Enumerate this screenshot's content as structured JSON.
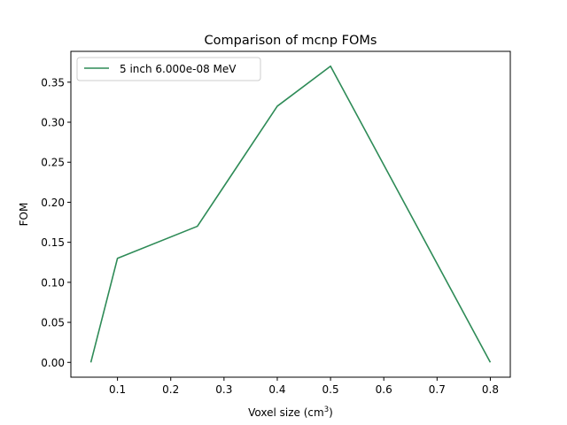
{
  "chart_data": {
    "type": "line",
    "title": "Comparison of mcnp FOMs",
    "xlabel": "Voxel size (cm",
    "xlabel_sup": "3",
    "xlabel_end": ")",
    "ylabel": "FOM",
    "xlim": [
      0.0125,
      0.8375
    ],
    "ylim": [
      -0.0185,
      0.3885
    ],
    "xticks": [
      0.1,
      0.2,
      0.3,
      0.4,
      0.5,
      0.6,
      0.7,
      0.8
    ],
    "xtick_labels": [
      "0.1",
      "0.2",
      "0.3",
      "0.4",
      "0.5",
      "0.6",
      "0.7",
      "0.8"
    ],
    "yticks": [
      0.0,
      0.05,
      0.1,
      0.15,
      0.2,
      0.25,
      0.3,
      0.35
    ],
    "ytick_labels": [
      "0.00",
      "0.05",
      "0.10",
      "0.15",
      "0.20",
      "0.25",
      "0.30",
      "0.35"
    ],
    "grid": false,
    "legend_position": "upper-left",
    "series": [
      {
        "name": "5 inch 6.000e-08 MeV",
        "color": "#2e8b57",
        "x": [
          0.05,
          0.1,
          0.25,
          0.4,
          0.5,
          0.8
        ],
        "y": [
          0.0,
          0.13,
          0.17,
          0.32,
          0.37,
          0.0
        ]
      }
    ]
  }
}
